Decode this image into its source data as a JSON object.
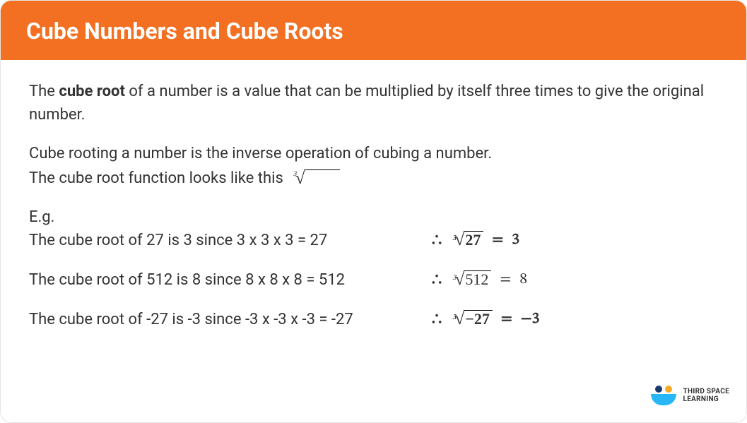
{
  "header": {
    "title": "Cube Numbers and Cube Roots",
    "bg_color": "#f36f21",
    "text_color": "#ffffff",
    "title_fontsize": 32
  },
  "body": {
    "text_color": "#333333",
    "fontsize": 22,
    "intro_pre": "The ",
    "intro_bold": "cube root",
    "intro_post": " of a number is a value that can be multiplied by itself three times to give the original number.",
    "inverse": "Cube rooting a number is the inverse operation of cubing a number.",
    "func_line": "The cube root function looks like this",
    "eg_label": "E.g."
  },
  "examples": [
    {
      "text": "The cube root of 27 is 3 since 3 x 3 x 3 = 27",
      "radicand": "27",
      "result": "3",
      "bold": true
    },
    {
      "text": "The cube root of 512 is 8 since 8 x 8 x 8 = 512",
      "radicand": "512",
      "result": "8",
      "bold": false
    },
    {
      "text": "The cube root of -27 is -3 since -3 x -3 x -3 = -27",
      "radicand": "−27",
      "result": "−3",
      "bold": true
    }
  ],
  "math": {
    "therefore": "∴",
    "root_index": "3",
    "equals": "="
  },
  "logo": {
    "line1": "THIRD SPACE",
    "line2": "LEARNING",
    "dot1_color": "#1a3a6e",
    "dot2_color": "#f9a825",
    "arc_color": "#29b6f6"
  }
}
